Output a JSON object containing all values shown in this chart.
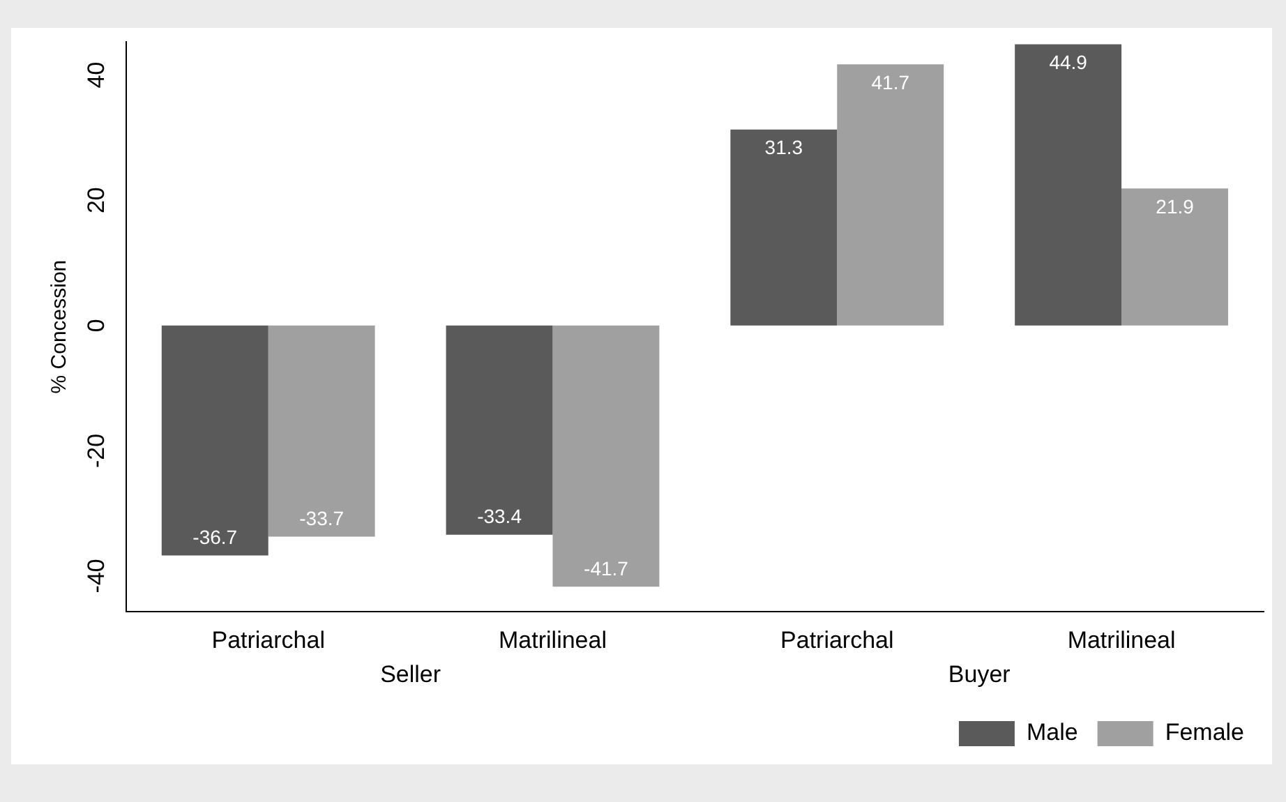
{
  "chart_data": {
    "type": "bar",
    "ylabel": "% Concession",
    "categories": [
      "Patriarchal",
      "Matrilineal",
      "Patriarchal",
      "Matrilineal"
    ],
    "series": [
      {
        "name": "Male",
        "color": "#5a5a5a",
        "values": [
          -36.7,
          -33.4,
          31.3,
          44.9
        ]
      },
      {
        "name": "Female",
        "color": "#a0a0a0",
        "values": [
          -33.7,
          -41.7,
          41.7,
          21.9
        ]
      }
    ],
    "ylim": [
      -45.7,
      45.3
    ],
    "yticks": [
      -40,
      -20,
      0,
      20,
      40
    ],
    "grid": false,
    "legend": "bottom right",
    "data_labels": true,
    "annotations": [
      "Seller",
      "Buyer"
    ]
  }
}
